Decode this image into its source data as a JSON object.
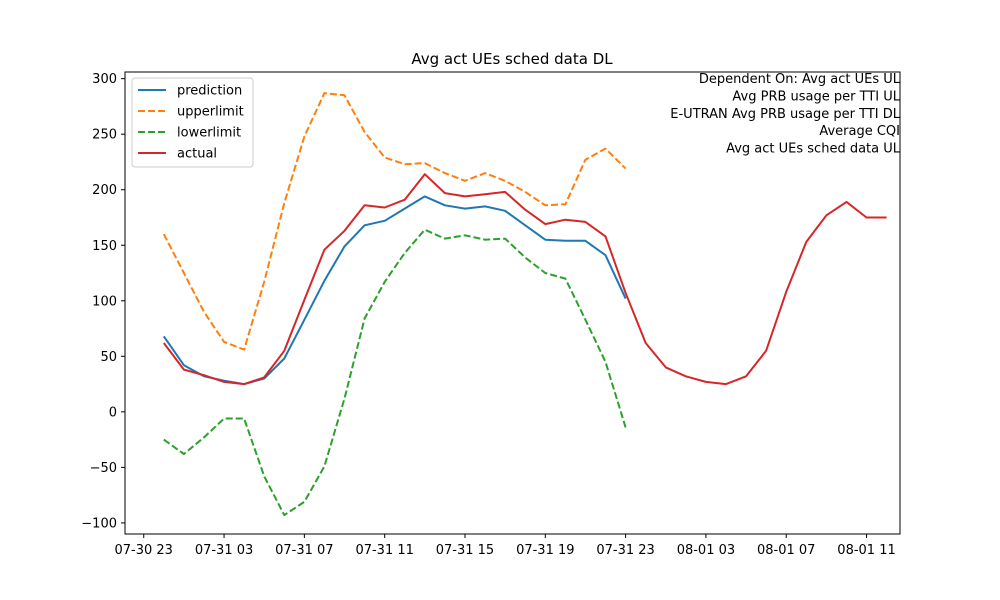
{
  "chart_data": {
    "type": "line",
    "title": "Avg act UEs sched data DL",
    "xlabel": "",
    "ylabel": "",
    "annotations": [
      "Dependent On: Avg act UEs UL",
      "Avg PRB usage per TTI UL",
      "E-UTRAN Avg PRB usage per TTI DL",
      "Average CQI",
      "Avg act UEs sched data UL"
    ],
    "x_ticks": [
      "07-30 23",
      "07-31 03",
      "07-31 07",
      "07-31 11",
      "07-31 15",
      "07-31 19",
      "07-31 23",
      "08-01 03",
      "08-01 07",
      "08-01 11"
    ],
    "x_tick_values": [
      "2023-07-30 23:00",
      "2023-07-31 03:00",
      "2023-07-31 07:00",
      "2023-07-31 11:00",
      "2023-07-31 15:00",
      "2023-07-31 19:00",
      "2023-07-31 23:00",
      "2023-08-01 03:00",
      "2023-08-01 07:00",
      "2023-08-01 11:00"
    ],
    "y_ticks": [
      -100,
      -50,
      0,
      50,
      100,
      150,
      200,
      250,
      300
    ],
    "xlim": [
      "2023-07-30 22:04",
      "2023-08-01 12:40"
    ],
    "ylim": [
      -110,
      306
    ],
    "legend_position": "top-left",
    "grid": false,
    "series": [
      {
        "name": "prediction",
        "style": "solid",
        "color": "#1f77b4",
        "x": [
          "2023-07-31 00:00",
          "2023-07-31 01:00",
          "2023-07-31 02:00",
          "2023-07-31 03:00",
          "2023-07-31 04:00",
          "2023-07-31 05:00",
          "2023-07-31 06:00",
          "2023-07-31 07:00",
          "2023-07-31 08:00",
          "2023-07-31 09:00",
          "2023-07-31 10:00",
          "2023-07-31 11:00",
          "2023-07-31 12:00",
          "2023-07-31 13:00",
          "2023-07-31 14:00",
          "2023-07-31 15:00",
          "2023-07-31 16:00",
          "2023-07-31 17:00",
          "2023-07-31 18:00",
          "2023-07-31 19:00",
          "2023-07-31 20:00",
          "2023-07-31 21:00",
          "2023-07-31 22:00",
          "2023-07-31 23:00"
        ],
        "y": [
          68,
          42,
          32,
          28,
          25,
          30,
          48,
          83,
          118,
          149,
          168,
          172,
          183,
          194,
          186,
          183,
          185,
          181,
          168,
          155,
          154,
          154,
          141,
          102
        ]
      },
      {
        "name": "upperlimit",
        "style": "dashed",
        "color": "#ff7f0e",
        "x": [
          "2023-07-31 00:00",
          "2023-07-31 01:00",
          "2023-07-31 02:00",
          "2023-07-31 03:00",
          "2023-07-31 04:00",
          "2023-07-31 05:00",
          "2023-07-31 06:00",
          "2023-07-31 07:00",
          "2023-07-31 08:00",
          "2023-07-31 09:00",
          "2023-07-31 10:00",
          "2023-07-31 11:00",
          "2023-07-31 12:00",
          "2023-07-31 13:00",
          "2023-07-31 14:00",
          "2023-07-31 15:00",
          "2023-07-31 16:00",
          "2023-07-31 17:00",
          "2023-07-31 18:00",
          "2023-07-31 19:00",
          "2023-07-31 20:00",
          "2023-07-31 21:00",
          "2023-07-31 22:00",
          "2023-07-31 23:00"
        ],
        "y": [
          160,
          125,
          90,
          63,
          56,
          117,
          188,
          248,
          287,
          285,
          252,
          229,
          223,
          224,
          215,
          208,
          215,
          208,
          198,
          186,
          187,
          227,
          237,
          219
        ]
      },
      {
        "name": "lowerlimit",
        "style": "dashed",
        "color": "#2ca02c",
        "x": [
          "2023-07-31 00:00",
          "2023-07-31 01:00",
          "2023-07-31 02:00",
          "2023-07-31 03:00",
          "2023-07-31 04:00",
          "2023-07-31 05:00",
          "2023-07-31 06:00",
          "2023-07-31 07:00",
          "2023-07-31 08:00",
          "2023-07-31 09:00",
          "2023-07-31 10:00",
          "2023-07-31 11:00",
          "2023-07-31 12:00",
          "2023-07-31 13:00",
          "2023-07-31 14:00",
          "2023-07-31 15:00",
          "2023-07-31 16:00",
          "2023-07-31 17:00",
          "2023-07-31 18:00",
          "2023-07-31 19:00",
          "2023-07-31 20:00",
          "2023-07-31 21:00",
          "2023-07-31 22:00",
          "2023-07-31 23:00"
        ],
        "y": [
          -25,
          -38,
          -23,
          -6,
          -6,
          -58,
          -93,
          -81,
          -49,
          12,
          84,
          117,
          143,
          164,
          156,
          159,
          155,
          156,
          139,
          125,
          120,
          83,
          45,
          -14
        ]
      },
      {
        "name": "actual",
        "style": "solid",
        "color": "#d62728",
        "x": [
          "2023-07-31 00:00",
          "2023-07-31 01:00",
          "2023-07-31 02:00",
          "2023-07-31 03:00",
          "2023-07-31 04:00",
          "2023-07-31 05:00",
          "2023-07-31 06:00",
          "2023-07-31 07:00",
          "2023-07-31 08:00",
          "2023-07-31 09:00",
          "2023-07-31 10:00",
          "2023-07-31 11:00",
          "2023-07-31 12:00",
          "2023-07-31 13:00",
          "2023-07-31 14:00",
          "2023-07-31 15:00",
          "2023-07-31 16:00",
          "2023-07-31 17:00",
          "2023-07-31 18:00",
          "2023-07-31 19:00",
          "2023-07-31 20:00",
          "2023-07-31 21:00",
          "2023-07-31 22:00",
          "2023-07-31 23:00",
          "2023-08-01 00:00",
          "2023-08-01 01:00",
          "2023-08-01 02:00",
          "2023-08-01 03:00",
          "2023-08-01 04:00",
          "2023-08-01 05:00",
          "2023-08-01 06:00",
          "2023-08-01 07:00",
          "2023-08-01 08:00",
          "2023-08-01 09:00",
          "2023-08-01 10:00",
          "2023-08-01 11:00",
          "2023-08-01 12:00"
        ],
        "y": [
          62,
          38,
          33,
          27,
          25,
          31,
          55,
          101,
          146,
          163,
          186,
          184,
          191,
          214,
          197,
          194,
          196,
          198,
          182,
          169,
          173,
          171,
          158,
          107,
          62,
          40,
          32,
          27,
          25,
          32,
          55,
          108,
          153,
          177,
          189,
          175,
          175
        ]
      }
    ]
  }
}
